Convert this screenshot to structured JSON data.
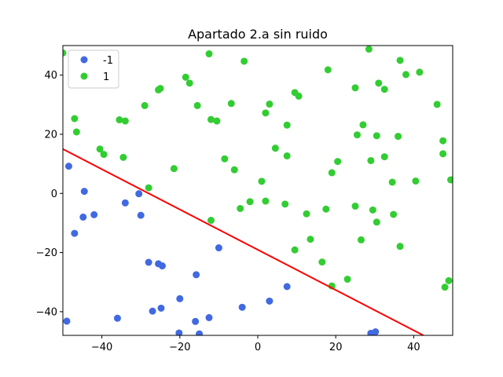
{
  "chart_data": {
    "type": "scatter",
    "title": "Apartado 2.a sin ruido",
    "xlabel": "",
    "ylabel": "",
    "xlim": [
      -50,
      50
    ],
    "ylim": [
      -48,
      50
    ],
    "xticks": [
      -40,
      -20,
      0,
      20,
      40
    ],
    "yticks": [
      -40,
      -20,
      0,
      20,
      40
    ],
    "grid": false,
    "legend_position": "top-left",
    "series": [
      {
        "name": "-1",
        "color": "#4169e1",
        "points": [
          [
            -48.5,
            9.2
          ],
          [
            -49,
            -43.2
          ],
          [
            -47,
            -13.5
          ],
          [
            -44.5,
            0.7
          ],
          [
            -44.8,
            -8.0
          ],
          [
            -42,
            -7.2
          ],
          [
            -36,
            -42.2
          ],
          [
            -34,
            -3.2
          ],
          [
            -30.5,
            -0.1
          ],
          [
            -30,
            -7.4
          ],
          [
            -28,
            -23.3
          ],
          [
            -27,
            -39.8
          ],
          [
            -25.5,
            -23.8
          ],
          [
            -24.5,
            -24.5
          ],
          [
            -24.8,
            -38.8
          ],
          [
            -20,
            -35.6
          ],
          [
            -20.2,
            -47.2
          ],
          [
            -15.8,
            -27.5
          ],
          [
            -16,
            -43.3
          ],
          [
            -15,
            -47.5
          ],
          [
            -12.5,
            -42.0
          ],
          [
            -10,
            -18.4
          ],
          [
            -4,
            -38.5
          ],
          [
            3,
            -36.4
          ],
          [
            7.5,
            -31.5
          ],
          [
            29,
            -47.3
          ],
          [
            30.2,
            -46.8
          ]
        ]
      },
      {
        "name": "1",
        "color": "#32cd32",
        "points": [
          [
            -50,
            47.5
          ],
          [
            -47,
            25.3
          ],
          [
            -46.5,
            20.8
          ],
          [
            -40.5,
            15.0
          ],
          [
            -39.5,
            13.2
          ],
          [
            -35.5,
            24.9
          ],
          [
            -34.5,
            12.2
          ],
          [
            -34,
            24.5
          ],
          [
            -29,
            29.7
          ],
          [
            -28,
            1.9
          ],
          [
            -25.5,
            35.0
          ],
          [
            -25,
            35.5
          ],
          [
            -21.5,
            8.4
          ],
          [
            -18.5,
            39.3
          ],
          [
            -17.5,
            37.3
          ],
          [
            -15.5,
            29.7
          ],
          [
            -12.5,
            47.2
          ],
          [
            -12,
            25.0
          ],
          [
            -12,
            -9.1
          ],
          [
            -10.5,
            24.5
          ],
          [
            -8.5,
            11.7
          ],
          [
            -6.8,
            30.4
          ],
          [
            -6,
            8.0
          ],
          [
            -4.5,
            -5.1
          ],
          [
            -3.5,
            44.7
          ],
          [
            -2,
            -2.8
          ],
          [
            1,
            4.1
          ],
          [
            2,
            -2.6
          ],
          [
            2,
            27.2
          ],
          [
            3,
            30.2
          ],
          [
            4.5,
            15.3
          ],
          [
            7,
            -3.6
          ],
          [
            7.5,
            12.7
          ],
          [
            7.5,
            23.1
          ],
          [
            9.5,
            -19.1
          ],
          [
            9.5,
            34.1
          ],
          [
            10.5,
            32.9
          ],
          [
            12.5,
            -6.9
          ],
          [
            13.5,
            -15.5
          ],
          [
            16.5,
            -23.2
          ],
          [
            17.5,
            -5.3
          ],
          [
            18,
            41.8
          ],
          [
            19,
            -31.3
          ],
          [
            19,
            7.0
          ],
          [
            20.5,
            10.8
          ],
          [
            23,
            -29.0
          ],
          [
            25,
            -4.3
          ],
          [
            25,
            35.7
          ],
          [
            25.5,
            19.8
          ],
          [
            26.5,
            -15.7
          ],
          [
            27,
            23.2
          ],
          [
            28.5,
            48.8
          ],
          [
            29,
            11.1
          ],
          [
            29.5,
            -5.6
          ],
          [
            30.5,
            -9.7
          ],
          [
            30.5,
            19.5
          ],
          [
            31,
            37.3
          ],
          [
            32.5,
            12.4
          ],
          [
            32.5,
            35.2
          ],
          [
            34.5,
            3.8
          ],
          [
            34.8,
            -7.1
          ],
          [
            36,
            19.3
          ],
          [
            36.5,
            -17.9
          ],
          [
            36.5,
            45.0
          ],
          [
            38,
            40.2
          ],
          [
            40.5,
            4.2
          ],
          [
            41.5,
            41.0
          ],
          [
            46,
            30.1
          ],
          [
            47.5,
            17.8
          ],
          [
            47.5,
            13.4
          ],
          [
            48,
            -31.7
          ],
          [
            49,
            -29.5
          ],
          [
            49.5,
            4.6
          ]
        ]
      }
    ],
    "line": {
      "color": "#ff0000",
      "points": [
        [
          -50,
          15.0
        ],
        [
          42.5,
          -48
        ]
      ]
    }
  }
}
